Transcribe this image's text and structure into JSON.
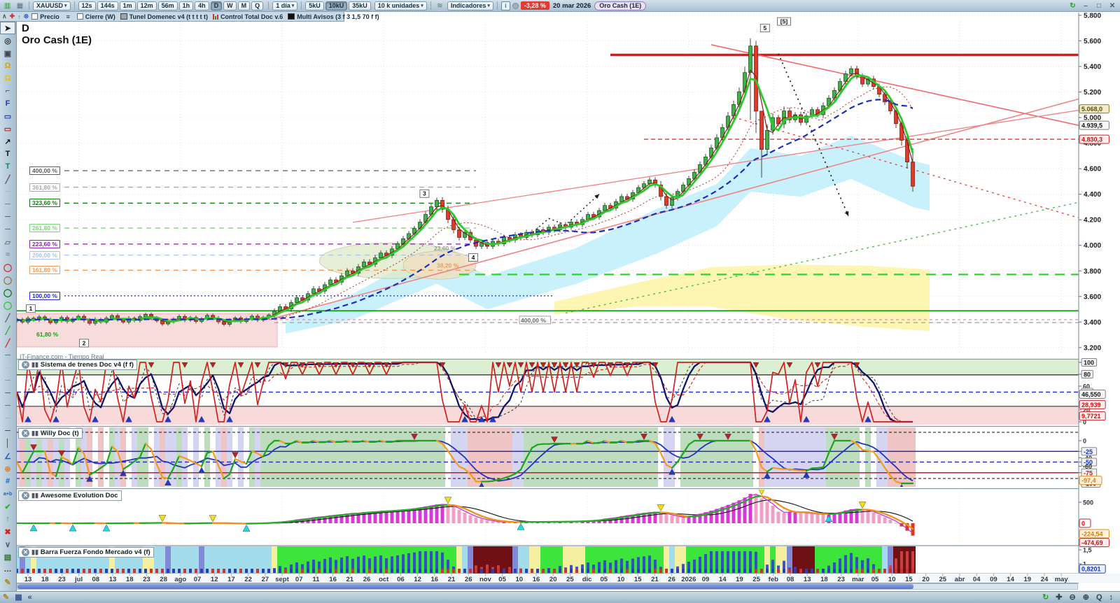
{
  "toolbar": {
    "symbol": "XAUUSD",
    "timeframes": [
      "12s",
      "144s",
      "1m",
      "12m",
      "56m",
      "1h",
      "4h",
      "D",
      "W",
      "M",
      "Q"
    ],
    "selected_timeframe": "D",
    "period": "1 día",
    "units": [
      "5kU",
      "10kU",
      "35kU"
    ],
    "selected_unit": "10kU",
    "units_label": "10 k unidades",
    "indicators": "Indicadores",
    "change_badge": "-3,28 %",
    "date": "20 mar 2026",
    "instrument_tag": "Oro Cash (1E)",
    "window": {
      "minimize": "–",
      "restore": "□",
      "close": "✕"
    }
  },
  "legend": {
    "items": [
      {
        "label": "Precio",
        "type": "checkbox"
      },
      {
        "label": "Cierre (W)",
        "type": "checkbox"
      },
      {
        "label": "Tunel Domenec v4 (t t t t t)",
        "type": "swatch-gray"
      },
      {
        "label": "Control Total Doc v.6",
        "type": "swatch-bars"
      },
      {
        "label": "Multi Avisos (3 f 3 1,5 70 f f)",
        "type": "swatch-black"
      }
    ]
  },
  "chart": {
    "timeframe_label": "D",
    "title": "Oro Cash (1E)",
    "watermark": "IT-Finance.com - Tiempo Real"
  },
  "price_axis": {
    "min": 3200,
    "max": 5800,
    "step": 200,
    "tags": [
      {
        "text": "5.068,0",
        "price": 5068,
        "style": "olive"
      },
      {
        "text": "4.939,5",
        "price": 4939,
        "style": "gray"
      },
      {
        "text": "4.830,3",
        "price": 4830,
        "style": "red"
      }
    ]
  },
  "panels": [
    {
      "title": "Sistema de trenes Doc v4 (f f)",
      "ticks": [
        {
          "t": "100",
          "v": 100,
          "boxed": true
        },
        {
          "t": "80",
          "v": 80,
          "boxed": true
        },
        {
          "t": "60",
          "v": 60
        },
        {
          "t": "50",
          "v": 50,
          "boxed": true,
          "blue": true
        },
        {
          "t": "20",
          "v": 20
        },
        {
          "t": "0",
          "v": 0
        }
      ],
      "tags": [
        {
          "text": "46,550",
          "v": 46.5,
          "style": "gray"
        },
        {
          "text": "28,939",
          "v": 29,
          "style": "red"
        },
        {
          "text": "9,7721",
          "v": 9.8,
          "style": "red"
        }
      ]
    },
    {
      "title": "Willy Doc (t)",
      "ticks": [
        {
          "t": "0",
          "v": 0
        },
        {
          "t": "-25",
          "v": -25,
          "boxed": true,
          "blue": true
        },
        {
          "t": "-40",
          "v": -40
        },
        {
          "t": "-50",
          "v": -50,
          "boxed": true,
          "blue": true
        },
        {
          "t": "-60",
          "v": -60
        },
        {
          "t": "-75",
          "v": -75,
          "boxed": true,
          "red": true
        },
        {
          "t": "-100",
          "v": -100,
          "boxed": true
        }
      ],
      "tags": [
        {
          "text": "-97,4",
          "v": -93,
          "style": "orange"
        }
      ]
    },
    {
      "title": "Awesome Evolution Doc",
      "ticks": [
        {
          "t": "500",
          "v": 500
        }
      ],
      "tags": [
        {
          "text": "0",
          "v": 0,
          "style": "redsm"
        },
        {
          "text": "-224,54",
          "v": -250,
          "style": "orange"
        },
        {
          "text": "-474,69",
          "v": -460,
          "style": "red"
        }
      ]
    },
    {
      "title": "Barra Fuerza Fondo Mercado v4 (f)",
      "ticks": [
        {
          "t": "1,5",
          "v": 1.5
        },
        {
          "t": "1",
          "v": 1
        },
        {
          "t": "0,5000",
          "v": 0.55
        }
      ],
      "tags": [
        {
          "text": "0,8201",
          "v": 0.82,
          "style": "blue"
        }
      ]
    }
  ],
  "time_axis": {
    "labels": [
      "13",
      "18",
      "23",
      "jul",
      "08",
      "13",
      "18",
      "23",
      "28",
      "ago",
      "07",
      "12",
      "17",
      "22",
      "27",
      "sept",
      "07",
      "11",
      "16",
      "21",
      "26",
      "oct",
      "06",
      "12",
      "16",
      "21",
      "26",
      "nov",
      "05",
      "10",
      "16",
      "20",
      "25",
      "dic",
      "05",
      "10",
      "15",
      "21",
      "26",
      "2026",
      "09",
      "14",
      "19",
      "25",
      "feb",
      "08",
      "13",
      "18",
      "23",
      "mar",
      "05",
      "10",
      "15",
      "20",
      "25",
      "abr",
      "04",
      "09",
      "14",
      "19",
      "24",
      "may"
    ]
  },
  "left_tools": [
    {
      "n": "pointer-tool",
      "g": "➤",
      "c": "#1a1a1a",
      "sel": true
    },
    {
      "n": "zoom-tool",
      "g": "◎",
      "c": "#333"
    },
    {
      "n": "zoom-area-tool",
      "g": "▣",
      "c": "#445"
    },
    {
      "n": "alarm-add-icon",
      "g": "Ω",
      "c": "#d8a010"
    },
    {
      "n": "alarm-icon",
      "g": "Ω",
      "c": "#e8b818"
    },
    {
      "n": "fib-projection-tool",
      "g": "⌐",
      "c": "#2038c0"
    },
    {
      "n": "fib-retracement-tool",
      "g": "F",
      "c": "#2038c0"
    },
    {
      "n": "rect-blue-tool",
      "g": "▭",
      "c": "#2038c0"
    },
    {
      "n": "rect-red-tool",
      "g": "▭",
      "c": "#d02020"
    },
    {
      "n": "arrow-tool",
      "g": "↗",
      "c": "#111"
    },
    {
      "n": "text-tool",
      "g": "T",
      "c": "#111"
    },
    {
      "n": "comment-tool",
      "g": "T",
      "c": "#108858"
    },
    {
      "n": "segment-tool",
      "g": "╱",
      "c": "#556"
    },
    {
      "n": "hline-lightgreen-tool",
      "g": "─",
      "c": "#60e060"
    },
    {
      "n": "hline-green-tool",
      "g": "─",
      "c": "#20a020"
    },
    {
      "n": "hline-darkgreen-tool",
      "g": "─",
      "c": "#0a6a0a"
    },
    {
      "n": "hline-red-tool",
      "g": "─",
      "c": "#d02020"
    },
    {
      "n": "ruler-tool",
      "g": "▱",
      "c": "#777"
    },
    {
      "n": "pattern-tool",
      "g": "≈",
      "c": "#889"
    },
    {
      "n": "ellipse-red-tool",
      "g": "◯",
      "c": "#d02020"
    },
    {
      "n": "ellipse-brown-tool",
      "g": "◯",
      "c": "#8a6a40"
    },
    {
      "n": "ellipse-darkgreen-tool",
      "g": "◯",
      "c": "#0a6a0a"
    },
    {
      "n": "ellipse-green-tool",
      "g": "◯",
      "c": "#30c030"
    },
    {
      "n": "trend-gray-tool",
      "g": "╱",
      "c": "#666"
    },
    {
      "n": "trend-green-tool",
      "g": "╱",
      "c": "#30b030"
    },
    {
      "n": "trend-red-tool",
      "g": "╱",
      "c": "#d03030"
    },
    {
      "n": "hline2-gray-tool",
      "g": "─",
      "c": "#555"
    },
    {
      "n": "hline2-pink-tool",
      "g": "─",
      "c": "#f0a0b0"
    },
    {
      "n": "hline2-green-tool",
      "g": "─",
      "c": "#30c030"
    },
    {
      "n": "hline2-darkgreen-tool",
      "g": "─",
      "c": "#0a6a0a"
    },
    {
      "n": "hline2-red-tool",
      "g": "─",
      "c": "#d02020"
    },
    {
      "n": "hline2-lightblue-tool",
      "g": "─",
      "c": "#80a8e8"
    },
    {
      "n": "hline2-navy-tool",
      "g": "─",
      "c": "#102880"
    },
    {
      "n": "vline-tool",
      "g": "│",
      "c": "#333"
    },
    {
      "n": "angle-tool",
      "g": "∠",
      "c": "#2060c0"
    },
    {
      "n": "target-tool",
      "g": "⊕",
      "c": "#e08030"
    },
    {
      "n": "fib-numbers-tool",
      "g": "#",
      "c": "#2060c0"
    },
    {
      "n": "ab-tool",
      "g": "a+b",
      "c": "#2060c0"
    },
    {
      "n": "check-tool",
      "g": "✔",
      "c": "#28b828"
    },
    {
      "n": "like-tool",
      "g": "↑",
      "c": "#28b828"
    },
    {
      "n": "delete-tool",
      "g": "✖",
      "c": "#d82020"
    },
    {
      "n": "more-tools-chevron",
      "g": "∨",
      "c": "#556"
    },
    {
      "n": "notes-tool",
      "g": "▤",
      "c": "#2c7a2c"
    },
    {
      "n": "ellipsis-tool",
      "g": "…",
      "c": "#333"
    },
    {
      "n": "draw-tool",
      "g": "✎",
      "c": "#b08820"
    }
  ],
  "bottom_toolbar": {
    "left": [
      {
        "n": "draw-mode-icon",
        "g": "✎",
        "c": "#b08820"
      },
      {
        "n": "share-icon",
        "g": "▦",
        "c": "#3a5a90"
      },
      {
        "n": "collapse-icon",
        "g": "«",
        "c": "#3a5068"
      }
    ],
    "right": [
      {
        "n": "refresh-data-icon",
        "g": "↻",
        "c": "#18a818"
      },
      {
        "n": "pan-zoom-icon",
        "g": "✚",
        "c": "#345"
      },
      {
        "n": "zoom-out-icon",
        "g": "⊖",
        "c": "#345"
      },
      {
        "n": "zoom-in-icon",
        "g": "⊕",
        "c": "#345"
      },
      {
        "n": "zoom-fit-icon",
        "g": "Q",
        "c": "#345"
      },
      {
        "n": "vertical-arrows-icon",
        "g": "↕",
        "c": "#345"
      }
    ]
  },
  "chart_data": {
    "type": "candlestick",
    "title": "Oro Cash (1E)",
    "timeframe": "D",
    "price_range": [
      3150,
      5750
    ],
    "closes": [
      3420,
      3400,
      3430,
      3415,
      3440,
      3420,
      3395,
      3410,
      3435,
      3405,
      3425,
      3445,
      3415,
      3390,
      3420,
      3400,
      3430,
      3450,
      3420,
      3400,
      3430,
      3412,
      3442,
      3460,
      3432,
      3410,
      3385,
      3402,
      3422,
      3444,
      3415,
      3435,
      3405,
      3425,
      3452,
      3430,
      3402,
      3382,
      3412,
      3432,
      3404,
      3424,
      3446,
      3416,
      3436,
      3455,
      3485,
      3520,
      3502,
      3552,
      3590,
      3572,
      3622,
      3660,
      3642,
      3692,
      3730,
      3712,
      3762,
      3800,
      3782,
      3832,
      3870,
      3852,
      3902,
      3940,
      3922,
      3972,
      4012,
      4052,
      4092,
      4132,
      4182,
      4242,
      4302,
      4352,
      4282,
      4202,
      4122,
      4062,
      4102,
      4042,
      3992,
      4022,
      3992,
      4032,
      4012,
      4062,
      4042,
      4082,
      4062,
      4102,
      4082,
      4122,
      4102,
      4142,
      4122,
      4162,
      4142,
      4182,
      4162,
      4202,
      4242,
      4222,
      4272,
      4312,
      4292,
      4342,
      4382,
      4362,
      4412,
      4452,
      4482,
      4512,
      4472,
      4382,
      4312,
      4372,
      4422,
      4472,
      4522,
      4572,
      4632,
      4692,
      4762,
      4842,
      4922,
      5012,
      5102,
      5202,
      5352,
      5560,
      5050,
      4750,
      4900,
      5000,
      4950,
      5052,
      4982,
      5022,
      4962,
      5012,
      5062,
      5022,
      5092,
      5152,
      5212,
      5282,
      5342,
      5382,
      5322,
      5262,
      5302,
      5242,
      5182,
      5122,
      5052,
      4952,
      4822,
      4652,
      4462
    ],
    "wicks": {
      "131": [
        5620,
        4980
      ],
      "132": [
        5600,
        4880
      ],
      "133": [
        5010,
        4530
      ],
      "160": [
        4760,
        4420
      ]
    },
    "clouds": [
      {
        "color": "#c2f0fb",
        "opacity": 0.9,
        "top": [
          [
            48,
            3400
          ],
          [
            60,
            3620
          ],
          [
            75,
            3980
          ],
          [
            84,
            3760
          ],
          [
            100,
            3980
          ],
          [
            114,
            4280
          ],
          [
            125,
            4480
          ],
          [
            131,
            4760
          ],
          [
            140,
            4700
          ],
          [
            149,
            4860
          ],
          [
            160,
            4660
          ],
          [
            163,
            4630
          ]
        ],
        "bottom": [
          [
            163,
            4270
          ],
          [
            160,
            4300
          ],
          [
            149,
            4520
          ],
          [
            140,
            4380
          ],
          [
            131,
            4420
          ],
          [
            125,
            4150
          ],
          [
            114,
            3930
          ],
          [
            100,
            3700
          ],
          [
            84,
            3500
          ],
          [
            75,
            3700
          ],
          [
            60,
            3420
          ],
          [
            48,
            3310
          ]
        ]
      },
      {
        "color": "#fcf6ae",
        "opacity": 0.95,
        "top": [
          [
            96,
            3560
          ],
          [
            110,
            3700
          ],
          [
            124,
            3830
          ],
          [
            138,
            3850
          ],
          [
            152,
            3840
          ],
          [
            163,
            3810
          ]
        ],
        "bottom": [
          [
            163,
            3330
          ],
          [
            152,
            3360
          ],
          [
            138,
            3420
          ],
          [
            124,
            3520
          ],
          [
            110,
            3520
          ],
          [
            96,
            3460
          ]
        ]
      }
    ],
    "zone": {
      "slots": [
        0,
        46.5
      ],
      "prices": [
        3205,
        3465
      ],
      "fill": "#f8dcdc",
      "stroke": "#e8a8a8"
    },
    "ellipses": [
      {
        "s": 67,
        "p": 3880,
        "rs": 13,
        "rp": 140,
        "color": "#dde8c8",
        "opacity": 0.75
      },
      {
        "s": 75.5,
        "p": 3845,
        "rs": 6.5,
        "rp": 110,
        "color": "#f2ddbe",
        "opacity": 0.8
      }
    ],
    "lines": [
      {
        "pts": [
          [
            106,
            5490
          ],
          [
            190,
            5490
          ]
        ],
        "color": "#e41616",
        "w": 3.5
      },
      {
        "pts": [
          [
            124,
            5570
          ],
          [
            190,
            4935
          ]
        ],
        "color": "#ef6a6a",
        "w": 1.6
      },
      {
        "pts": [
          [
            46,
            3430
          ],
          [
            190,
            5150
          ]
        ],
        "color": "#ef8585",
        "w": 1.6
      },
      {
        "pts": [
          [
            60,
            4180
          ],
          [
            190,
            5060
          ]
        ],
        "color": "#ef8585",
        "w": 1.3
      },
      {
        "pts": [
          [
            112,
            4830
          ],
          [
            190,
            4830
          ]
        ],
        "color": "#e43030",
        "w": 1.4,
        "dash": "6,4"
      },
      {
        "pts": [
          [
            0,
            3418
          ],
          [
            190,
            3418
          ]
        ],
        "color": "#ef86b8",
        "w": 1.2,
        "dash": "4,4"
      },
      {
        "pts": [
          [
            0,
            3488
          ],
          [
            190,
            3488
          ]
        ],
        "color": "#14a014",
        "w": 1.8
      },
      {
        "pts": [
          [
            46,
            3395
          ],
          [
            190,
            3395
          ]
        ],
        "color": "#9a9a9a",
        "w": 1.2,
        "dash": "6,5"
      },
      {
        "pts": [
          [
            79,
            3772
          ],
          [
            190,
            3772
          ]
        ],
        "color": "#2ed42e",
        "w": 2.2,
        "dash": "14,9"
      },
      {
        "pts": [
          [
            98,
            3470
          ],
          [
            190,
            4340
          ]
        ],
        "color": "#53b853",
        "w": 1.4,
        "dash": "3,5"
      },
      {
        "pts": [
          [
            129,
            4990
          ],
          [
            190,
            4210
          ]
        ],
        "color": "#e44b4b",
        "w": 1.4,
        "dash": "3,5"
      },
      {
        "pts": [
          [
            136,
            5500
          ],
          [
            148.5,
            4230
          ]
        ],
        "color": "#1a1a1a",
        "w": 1.7,
        "dash": "2,5",
        "arrow": true
      },
      {
        "pts": [
          [
            91,
            4060
          ],
          [
            95,
            4210
          ],
          [
            98,
            4160
          ],
          [
            104,
            4400
          ]
        ],
        "color": "#1a1a1a",
        "w": 1.4,
        "dash": "2,4",
        "arrow": true
      }
    ],
    "fib_levels": [
      {
        "label": "400,00 %",
        "price": 4584,
        "color": "#5a5a5a",
        "to": 82
      },
      {
        "label": "361,80 %",
        "price": 4455,
        "color": "#a9a9a9",
        "to": 82
      },
      {
        "label": "323,60 %",
        "price": 4330,
        "color": "#0e7a12",
        "to": 82
      },
      {
        "label": "261,80 %",
        "price": 4135,
        "color": "#7ad67a",
        "to": 82
      },
      {
        "label": "223,60 %",
        "price": 4010,
        "color": "#8a1fb0",
        "to": 82
      },
      {
        "label": "200,00 %",
        "price": 3924,
        "color": "#a9c4ef",
        "to": 82
      },
      {
        "label": "161,80 %",
        "price": 3805,
        "color": "#f29a57",
        "to": 82
      },
      {
        "label": "100,00 %",
        "price": 3605,
        "color": "#1f2ecb",
        "to": 96,
        "dotted": true
      }
    ],
    "number_markers": [
      {
        "t": "1",
        "s": 2.5,
        "p": 3505
      },
      {
        "t": "2",
        "s": 12,
        "p": 3235
      },
      {
        "t": "3",
        "s": 72.8,
        "p": 4405
      },
      {
        "t": "4",
        "s": 81.5,
        "p": 3905
      },
      {
        "t": "5",
        "s": 133.6,
        "p": 5700
      },
      {
        "t": "[5]",
        "s": 137,
        "p": 5752
      }
    ],
    "extra_labels": [
      {
        "t": "23,60 %",
        "s": 74.5,
        "p": 3965,
        "color": "#9a9a9a"
      },
      {
        "t": "38,20 %",
        "s": 75,
        "p": 3832,
        "color": "#f29a57"
      },
      {
        "t": "61,80 %",
        "s": 3.5,
        "p": 3292,
        "color": "#14a014"
      },
      {
        "t": "400,00 %",
        "s": 90,
        "p": 3402,
        "color": "#6a6a6a",
        "boxed": true
      }
    ]
  }
}
